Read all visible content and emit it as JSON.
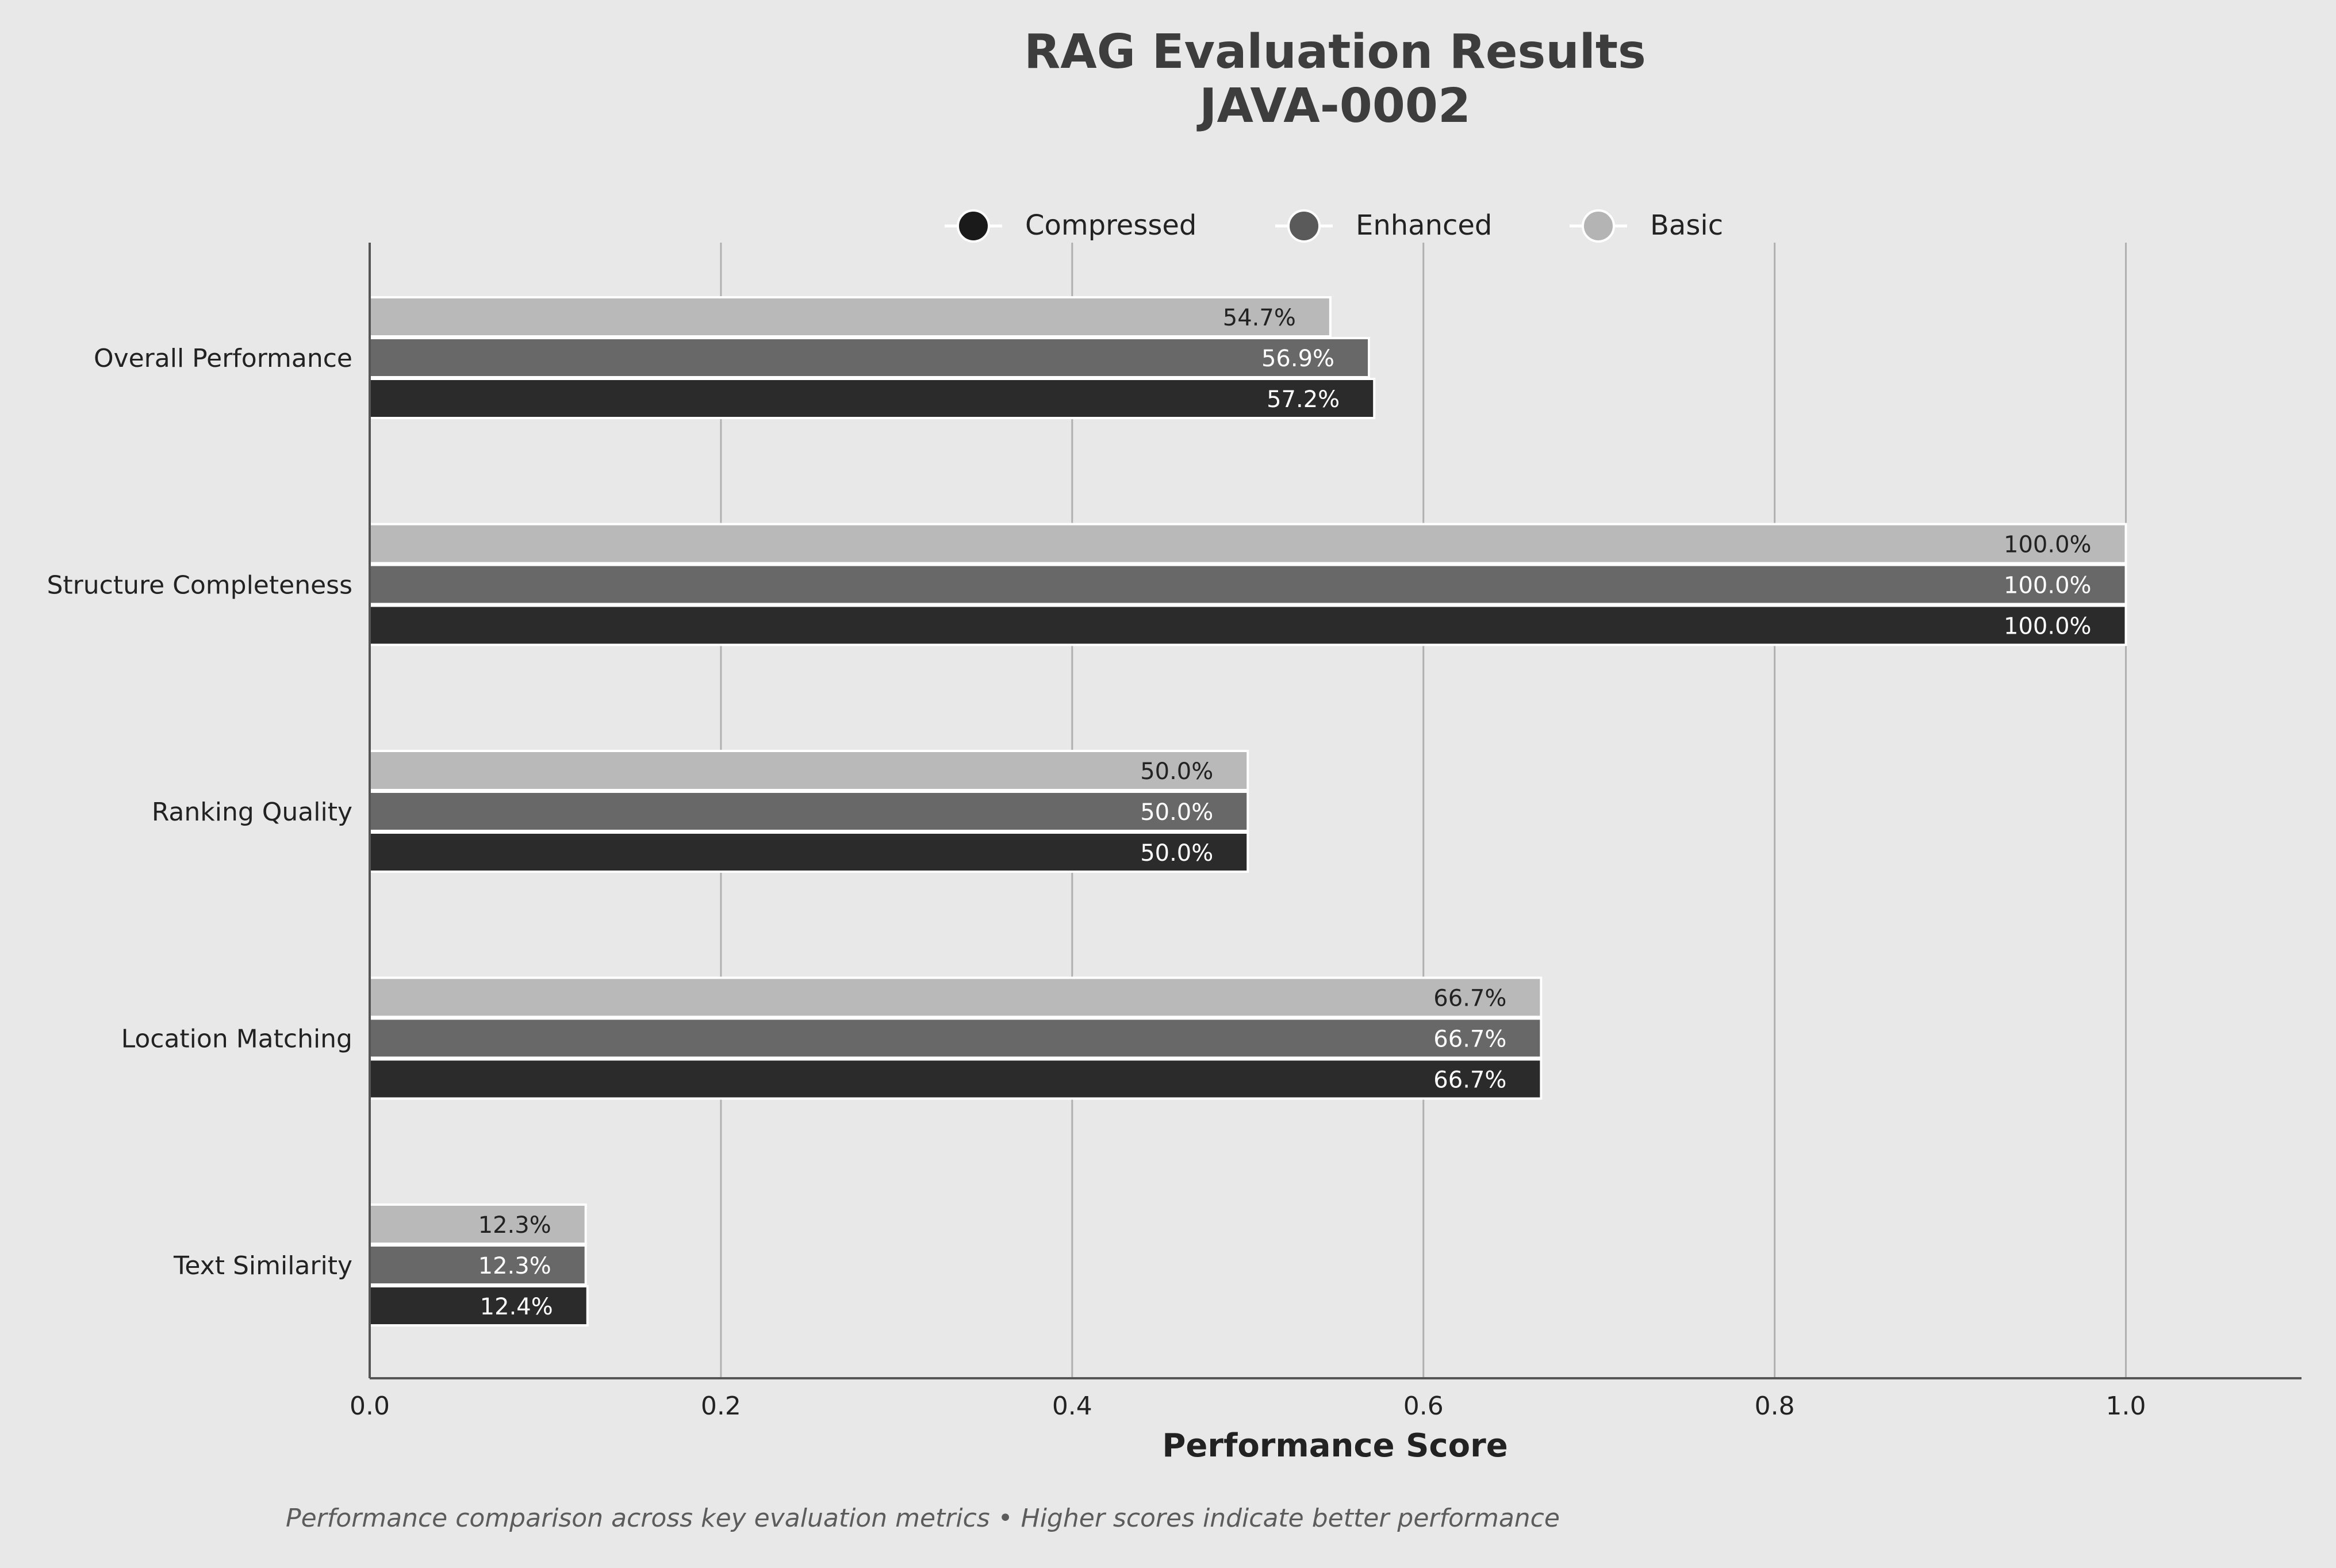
{
  "chart_data": {
    "type": "bar",
    "orientation": "horizontal",
    "title": "RAG Evaluation Results",
    "subtitle": "JAVA-0002",
    "xlabel": "Performance Score",
    "ylabel": "",
    "xlim": [
      0,
      1.1
    ],
    "xticks": [
      0.0,
      0.2,
      0.4,
      0.6,
      0.8,
      1.0
    ],
    "xtick_labels": [
      "0.0",
      "0.2",
      "0.4",
      "0.6",
      "0.8",
      "1.0"
    ],
    "grid": "vertical",
    "legend_position": "top-center",
    "categories": [
      "Overall Performance",
      "Structure Completeness",
      "Ranking Quality",
      "Location Matching",
      "Text Similarity"
    ],
    "series": [
      {
        "name": "Basic",
        "color": "#b9b9b9",
        "label_color": "#222222",
        "values": [
          0.547,
          1.0,
          0.5,
          0.667,
          0.123
        ],
        "labels": [
          "54.7%",
          "100.0%",
          "50.0%",
          "66.7%",
          "12.3%"
        ]
      },
      {
        "name": "Enhanced",
        "color": "#686868",
        "label_color": "#ffffff",
        "values": [
          0.569,
          1.0,
          0.5,
          0.667,
          0.123
        ],
        "labels": [
          "56.9%",
          "100.0%",
          "50.0%",
          "66.7%",
          "12.3%"
        ]
      },
      {
        "name": "Compressed",
        "color": "#2b2b2b",
        "label_color": "#ffffff",
        "values": [
          0.572,
          1.0,
          0.5,
          0.667,
          0.124
        ],
        "labels": [
          "57.2%",
          "100.0%",
          "50.0%",
          "66.7%",
          "12.4%"
        ]
      }
    ],
    "legend": [
      {
        "name": "Compressed",
        "color": "#1a1a1a"
      },
      {
        "name": "Enhanced",
        "color": "#5a5a5a"
      },
      {
        "name": "Basic",
        "color": "#b4b4b4"
      }
    ],
    "footnote": "Performance comparison across key evaluation metrics • Higher scores indicate better performance"
  }
}
